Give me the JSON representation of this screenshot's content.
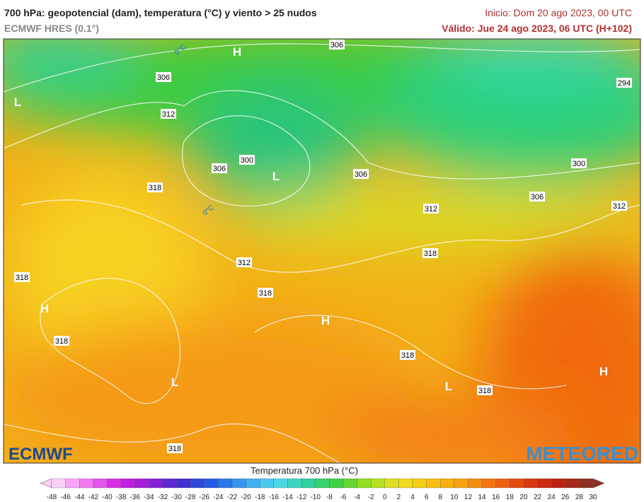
{
  "header": {
    "title": "700 hPa: geopotencial (dam), temperatura (°C) y viento > 25 nudos",
    "model": "ECMWF HRES (0.1°)",
    "init": "Inicio: Dom 20 ago 2023, 00 UTC",
    "valid": "Válido: Jue 24 ago 2023, 06 UTC (H+102)"
  },
  "map": {
    "contour_labels": [
      "306",
      "306",
      "312",
      "306",
      "300",
      "318",
      "306",
      "300",
      "306",
      "312",
      "312",
      "294",
      "318",
      "312",
      "318",
      "318",
      "318",
      "318",
      "318",
      "318"
    ],
    "pressure_centers": [
      "H",
      "L",
      "L",
      "H",
      "H",
      "L",
      "L",
      "H"
    ],
    "isotherms": [
      "0°C",
      "0°C"
    ]
  },
  "colorbar": {
    "title": "Temperatura 700 hPa (°C)",
    "ticks": [
      -48,
      -46,
      -44,
      -42,
      -40,
      -38,
      -36,
      -34,
      -32,
      -30,
      -28,
      -26,
      -24,
      -22,
      -20,
      -18,
      -16,
      -14,
      -12,
      -10,
      -8,
      -6,
      -4,
      -2,
      0,
      2,
      4,
      6,
      8,
      10,
      12,
      14,
      16,
      18,
      20,
      22,
      24,
      26,
      28,
      30
    ]
  },
  "logos": {
    "left": "ECMWF",
    "right": "METEORED"
  }
}
